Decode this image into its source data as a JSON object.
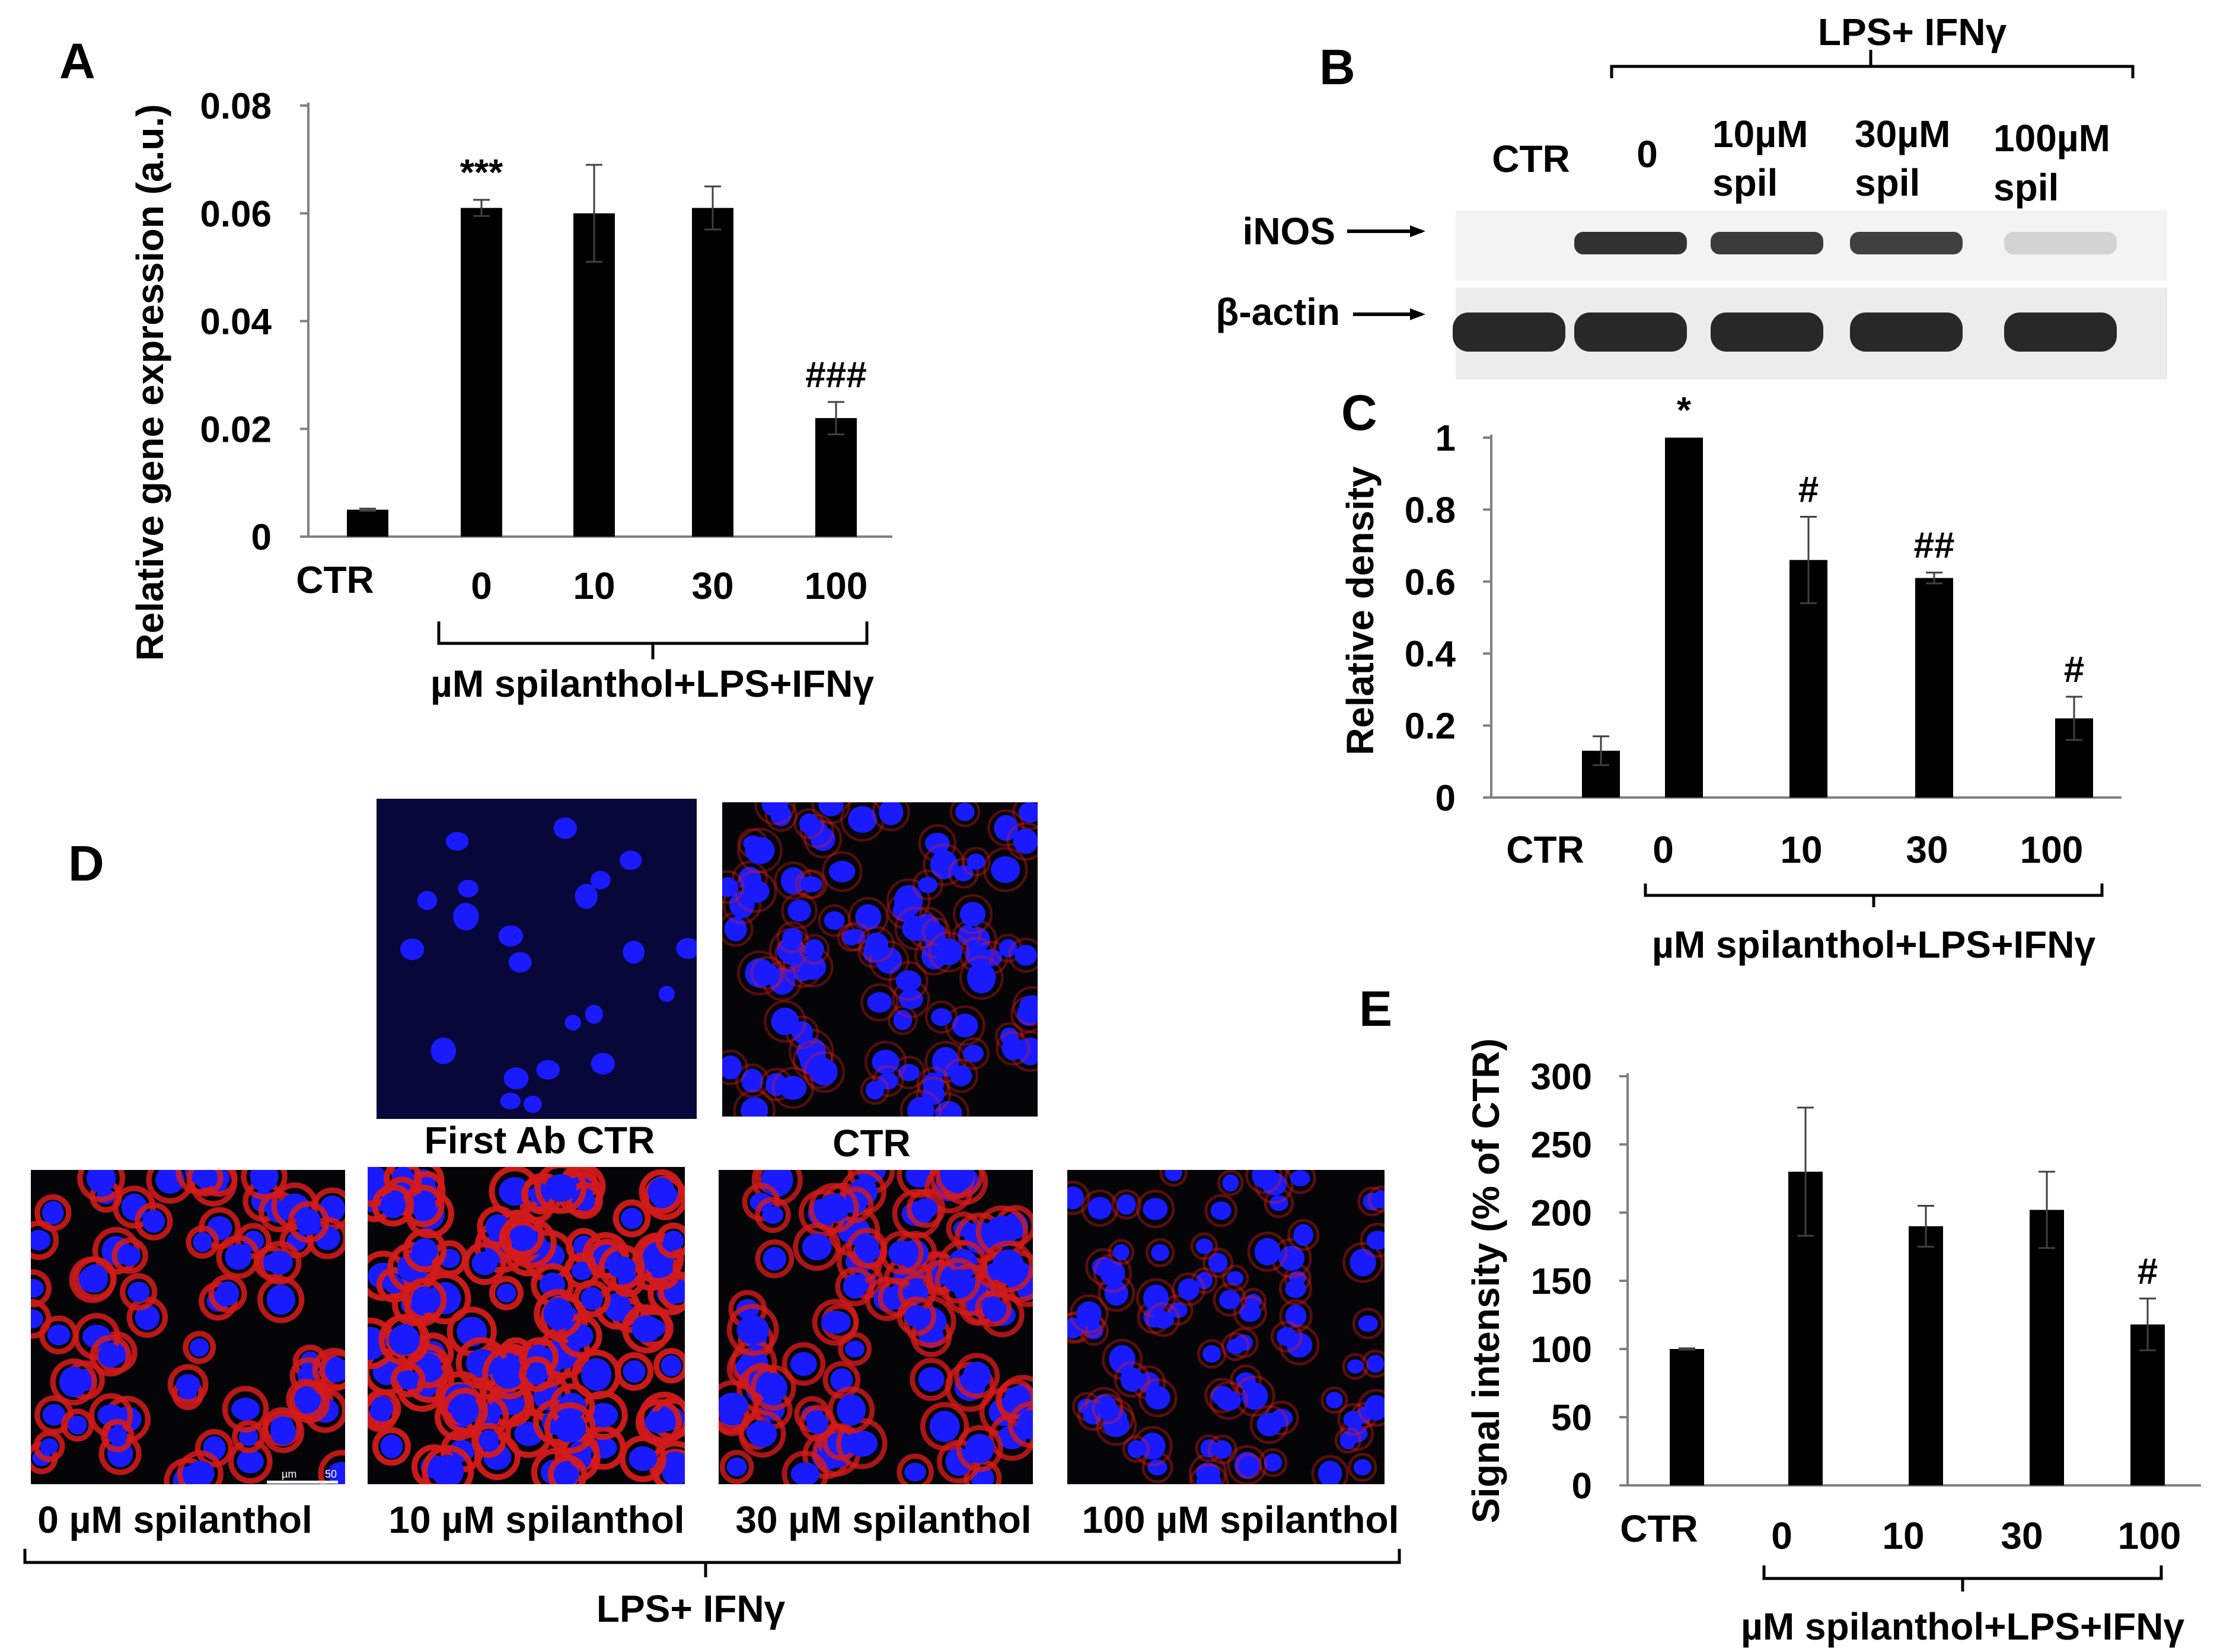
{
  "panel_letters": [
    "A",
    "B",
    "C",
    "D",
    "E"
  ],
  "common": {
    "ctr_label": "CTR",
    "treatment_caption": "µM spilanthol+LPS+IFNγ"
  },
  "chart_data": [
    {
      "panel": "A",
      "type": "bar",
      "ylabel": "Relative gene expression (a.u.)",
      "ylim": [
        0,
        0.08
      ],
      "yticks": [
        0,
        0.02,
        0.04,
        0.06,
        0.08
      ],
      "ytick_labels": [
        "0",
        "0.02",
        "0.04",
        "0.06",
        "0.08"
      ],
      "categories": [
        "CTR",
        "0",
        "10",
        "30",
        "100"
      ],
      "values": [
        0.005,
        0.061,
        0.06,
        0.061,
        0.022
      ],
      "errors": [
        0.0002,
        0.0015,
        0.009,
        0.004,
        0.003
      ],
      "annotations": [
        "",
        "***",
        "",
        "",
        "###"
      ],
      "grid": false,
      "legend": "none"
    },
    {
      "panel": "C",
      "type": "bar",
      "ylabel": "Relative density",
      "ylim": [
        0,
        1
      ],
      "yticks": [
        0,
        0.2,
        0.4,
        0.6,
        0.8,
        1
      ],
      "ytick_labels": [
        "0",
        "0.2",
        "0.4",
        "0.6",
        "0.8",
        "1"
      ],
      "categories": [
        "CTR",
        "0",
        "10",
        "30",
        "100"
      ],
      "values": [
        0.13,
        1.0,
        0.66,
        0.61,
        0.22
      ],
      "errors": [
        0.04,
        0.0,
        0.12,
        0.015,
        0.06
      ],
      "annotations": [
        "",
        "*",
        "#",
        "##",
        "#"
      ],
      "grid": false,
      "legend": "none"
    },
    {
      "panel": "E",
      "type": "bar",
      "ylabel": "Signal intensity (% of CTR)",
      "ylim": [
        0,
        300
      ],
      "yticks": [
        0,
        50,
        100,
        150,
        200,
        250,
        300
      ],
      "ytick_labels": [
        "0",
        "50",
        "100",
        "150",
        "200",
        "250",
        "300"
      ],
      "categories": [
        "CTR",
        "0",
        "10",
        "30",
        "100"
      ],
      "values": [
        100,
        230,
        190,
        202,
        118
      ],
      "errors": [
        0.5,
        47,
        15,
        28,
        19
      ],
      "annotations": [
        "",
        "",
        "",
        "",
        "#"
      ],
      "grid": false,
      "legend": "none"
    }
  ],
  "western_blot": {
    "group_label": "LPS+ IFNγ",
    "lanes": [
      {
        "line1": "CTR",
        "line2": ""
      },
      {
        "line1": "0",
        "line2": ""
      },
      {
        "line1": "10µM",
        "line2": "spil"
      },
      {
        "line1": "30µM",
        "line2": "spil"
      },
      {
        "line1": "100µM",
        "line2": "spil"
      }
    ],
    "rows": [
      {
        "label": "iNOS",
        "band_intensity": [
          0.02,
          0.95,
          0.9,
          0.88,
          0.1
        ]
      },
      {
        "label": "β-actin",
        "band_intensity": [
          1.0,
          1.0,
          1.0,
          1.0,
          1.0
        ]
      }
    ]
  },
  "microscopy": {
    "group_label": "LPS+ IFNγ",
    "top_row": [
      {
        "caption": "First Ab CTR",
        "red_stain": 0.0
      },
      {
        "caption": "CTR",
        "red_stain": 0.2
      }
    ],
    "bottom_row": [
      {
        "caption": "0 µM spilanthol",
        "red_stain": 0.9
      },
      {
        "caption": "10 µM spilanthol",
        "red_stain": 1.0
      },
      {
        "caption": "30 µM spilanthol",
        "red_stain": 0.8
      },
      {
        "caption": "100 µM spilanthol",
        "red_stain": 0.25
      }
    ],
    "scale_bars": [
      "µm",
      "50"
    ],
    "colors": {
      "nucleus": "#1a1aff",
      "stain": "#d41a1a",
      "background": "#050508"
    }
  }
}
